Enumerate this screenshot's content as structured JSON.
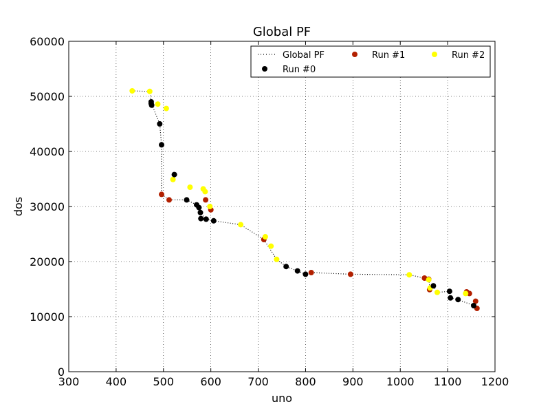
{
  "chart_data": {
    "type": "scatter",
    "title": "Global PF",
    "xlabel": "uno",
    "ylabel": "dos",
    "xlim": [
      300,
      1200
    ],
    "ylim": [
      0,
      60000
    ],
    "xticks": [
      300,
      400,
      500,
      600,
      700,
      800,
      900,
      1000,
      1100,
      1200
    ],
    "yticks": [
      0,
      10000,
      20000,
      30000,
      40000,
      50000,
      60000
    ],
    "grid": true,
    "legend_position": "top-right",
    "series": [
      {
        "name": "Global PF",
        "kind": "line",
        "style": "dotted",
        "color": "#000000",
        "points": [
          [
            434,
            51000
          ],
          [
            471,
            50900
          ],
          [
            474,
            49000
          ],
          [
            475,
            48600
          ],
          [
            492,
            45000
          ],
          [
            496,
            41200
          ],
          [
            496,
            32200
          ],
          [
            512,
            31200
          ],
          [
            549,
            31200
          ],
          [
            570,
            30300
          ],
          [
            575,
            29800
          ],
          [
            578,
            28800
          ],
          [
            590,
            27700
          ],
          [
            606,
            27400
          ],
          [
            663,
            26700
          ],
          [
            712,
            24000
          ],
          [
            739,
            20400
          ],
          [
            759,
            19100
          ],
          [
            783,
            18300
          ],
          [
            800,
            17700
          ],
          [
            812,
            18000
          ],
          [
            895,
            17700
          ],
          [
            1019,
            17600
          ],
          [
            1051,
            17000
          ],
          [
            1060,
            16800
          ],
          [
            1063,
            15000
          ],
          [
            1070,
            15600
          ],
          [
            1078,
            14400
          ],
          [
            1104,
            14600
          ],
          [
            1106,
            13400
          ],
          [
            1122,
            13100
          ],
          [
            1155,
            12000
          ],
          [
            1162,
            11500
          ]
        ]
      },
      {
        "name": "Run #1",
        "kind": "scatter",
        "color": "#b22000",
        "points": [
          [
            496,
            32200
          ],
          [
            512,
            31200
          ],
          [
            589,
            31200
          ],
          [
            600,
            29400
          ],
          [
            712,
            24000
          ],
          [
            812,
            18000
          ],
          [
            895,
            17700
          ],
          [
            1051,
            17000
          ],
          [
            1060,
            16800
          ],
          [
            1062,
            14900
          ],
          [
            1140,
            14500
          ],
          [
            1146,
            14200
          ],
          [
            1159,
            12800
          ],
          [
            1162,
            11500
          ]
        ]
      },
      {
        "name": "Run #2",
        "kind": "scatter",
        "color": "#ffff00",
        "points": [
          [
            434,
            51000
          ],
          [
            471,
            50900
          ],
          [
            488,
            48600
          ],
          [
            506,
            47800
          ],
          [
            520,
            34900
          ],
          [
            556,
            33500
          ],
          [
            584,
            33200
          ],
          [
            588,
            32700
          ],
          [
            598,
            30000
          ],
          [
            663,
            26700
          ],
          [
            715,
            24500
          ],
          [
            727,
            22800
          ],
          [
            739,
            20400
          ],
          [
            1019,
            17600
          ],
          [
            1060,
            16700
          ],
          [
            1063,
            15200
          ],
          [
            1078,
            14400
          ],
          [
            1138,
            14200
          ]
        ]
      },
      {
        "name": "Run #0",
        "kind": "scatter",
        "color": "#000000",
        "points": [
          [
            474,
            49000
          ],
          [
            474,
            48700
          ],
          [
            475,
            48400
          ],
          [
            492,
            45000
          ],
          [
            496,
            41200
          ],
          [
            523,
            35800
          ],
          [
            549,
            31200
          ],
          [
            570,
            30300
          ],
          [
            575,
            29800
          ],
          [
            578,
            28900
          ],
          [
            579,
            27800
          ],
          [
            590,
            27700
          ],
          [
            606,
            27400
          ],
          [
            759,
            19100
          ],
          [
            783,
            18300
          ],
          [
            800,
            17700
          ],
          [
            1070,
            15600
          ],
          [
            1104,
            14600
          ],
          [
            1106,
            13400
          ],
          [
            1122,
            13100
          ],
          [
            1155,
            12000
          ]
        ]
      }
    ],
    "legend": [
      {
        "label": "Global PF",
        "series": 0
      },
      {
        "label": "Run #1",
        "series": 1
      },
      {
        "label": "Run #2",
        "series": 2
      },
      {
        "label": "Run #0",
        "series": 3
      }
    ]
  }
}
